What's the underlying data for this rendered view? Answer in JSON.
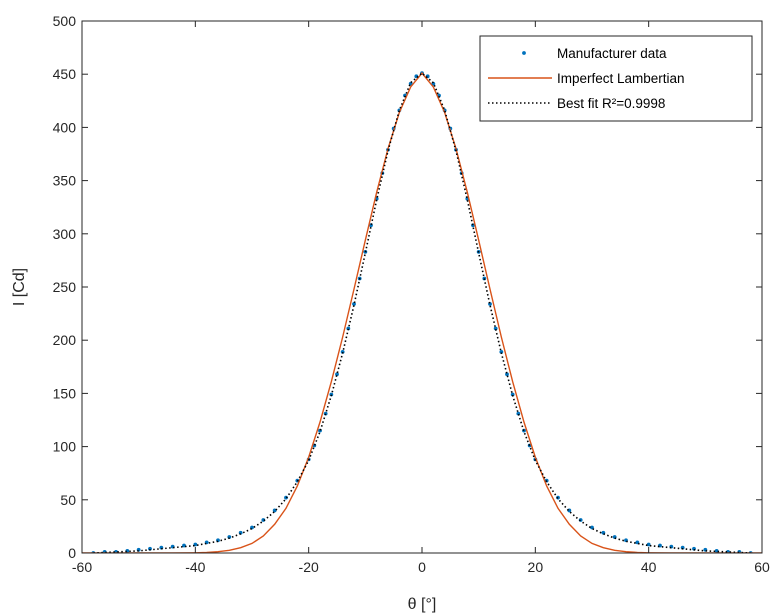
{
  "chart_data": {
    "type": "line",
    "title": "",
    "xlabel": "θ [°]",
    "ylabel": "I [Cd]",
    "xlim": [
      -60,
      60
    ],
    "ylim": [
      0,
      500
    ],
    "xticks": [
      -60,
      -40,
      -20,
      0,
      20,
      40,
      60
    ],
    "yticks": [
      0,
      50,
      100,
      150,
      200,
      250,
      300,
      350,
      400,
      450,
      500
    ],
    "grid": false,
    "legend_position": "top-right",
    "series": [
      {
        "name": "Manufacturer data",
        "style": "dots",
        "color": "#0072BD",
        "x": [
          -58,
          -56,
          -54,
          -52,
          -50,
          -48,
          -46,
          -44,
          -42,
          -40,
          -38,
          -36,
          -34,
          -32,
          -30,
          -28,
          -26,
          -24,
          -22,
          -20,
          -19,
          -18,
          -17,
          -16,
          -15,
          -14,
          -13,
          -12,
          -11,
          -10,
          -9,
          -8,
          -7,
          -6,
          -5,
          -4,
          -3,
          -2,
          -1,
          0,
          1,
          2,
          3,
          4,
          5,
          6,
          7,
          8,
          9,
          10,
          11,
          12,
          13,
          14,
          15,
          16,
          17,
          18,
          19,
          20,
          22,
          24,
          26,
          28,
          30,
          32,
          34,
          36,
          38,
          40,
          42,
          44,
          46,
          48,
          50,
          52,
          54,
          56,
          58
        ],
        "y": [
          0,
          1,
          1,
          2,
          3,
          4,
          5,
          6,
          7,
          8,
          10,
          12,
          15,
          19,
          24,
          31,
          40,
          52,
          68,
          88,
          101,
          115,
          131,
          149,
          168,
          189,
          211,
          234,
          258,
          283,
          308,
          333,
          357,
          379,
          399,
          416,
          430,
          441,
          448,
          451,
          448,
          441,
          430,
          416,
          399,
          379,
          357,
          333,
          308,
          283,
          258,
          234,
          211,
          189,
          168,
          149,
          131,
          115,
          101,
          88,
          68,
          52,
          40,
          31,
          24,
          19,
          15,
          12,
          10,
          8,
          7,
          6,
          5,
          4,
          3,
          2,
          1,
          1,
          0
        ]
      },
      {
        "name": "Imperfect Lambertian",
        "style": "solid",
        "color": "#D95319",
        "x": [
          -60,
          -56,
          -52,
          -48,
          -44,
          -40,
          -38,
          -36,
          -34,
          -32,
          -30,
          -28,
          -26,
          -24,
          -22,
          -20,
          -18,
          -16,
          -14,
          -12,
          -10,
          -8,
          -6,
          -4,
          -2,
          0,
          2,
          4,
          6,
          8,
          10,
          12,
          14,
          16,
          18,
          20,
          22,
          24,
          26,
          28,
          30,
          32,
          34,
          36,
          38,
          40,
          44,
          48,
          52,
          56,
          60
        ],
        "y": [
          0,
          0,
          0,
          0,
          0,
          0.2,
          0.5,
          1.2,
          2.5,
          5,
          9,
          16,
          27,
          42,
          63,
          90,
          123,
          161,
          203,
          248,
          294,
          339,
          380,
          414,
          438,
          451,
          438,
          414,
          380,
          339,
          294,
          248,
          203,
          161,
          123,
          90,
          63,
          42,
          27,
          16,
          9,
          5,
          2.5,
          1.2,
          0.5,
          0.2,
          0,
          0,
          0,
          0,
          0
        ]
      },
      {
        "name": "Best fit R²=0.9998",
        "style": "dotted",
        "color": "#000000",
        "x": [
          -58,
          -56,
          -54,
          -52,
          -50,
          -48,
          -46,
          -44,
          -42,
          -40,
          -38,
          -36,
          -34,
          -32,
          -30,
          -28,
          -26,
          -24,
          -22,
          -20,
          -18,
          -16,
          -14,
          -12,
          -10,
          -8,
          -6,
          -4,
          -2,
          0,
          2,
          4,
          6,
          8,
          10,
          12,
          14,
          16,
          18,
          20,
          22,
          24,
          26,
          28,
          30,
          32,
          34,
          36,
          38,
          40,
          42,
          44,
          46,
          48,
          50,
          52,
          54,
          56,
          58
        ],
        "y": [
          0,
          0.5,
          1,
          1.5,
          2,
          3,
          4,
          5,
          6,
          7,
          9,
          11,
          14,
          18,
          23,
          30,
          39,
          51,
          67,
          87,
          114,
          148,
          188,
          233,
          282,
          332,
          378,
          416,
          442,
          451,
          442,
          416,
          378,
          332,
          282,
          233,
          188,
          148,
          114,
          87,
          67,
          51,
          39,
          30,
          23,
          18,
          14,
          11,
          9,
          7,
          6,
          5,
          4,
          3,
          2,
          1.5,
          1,
          0.5,
          0
        ]
      }
    ]
  }
}
